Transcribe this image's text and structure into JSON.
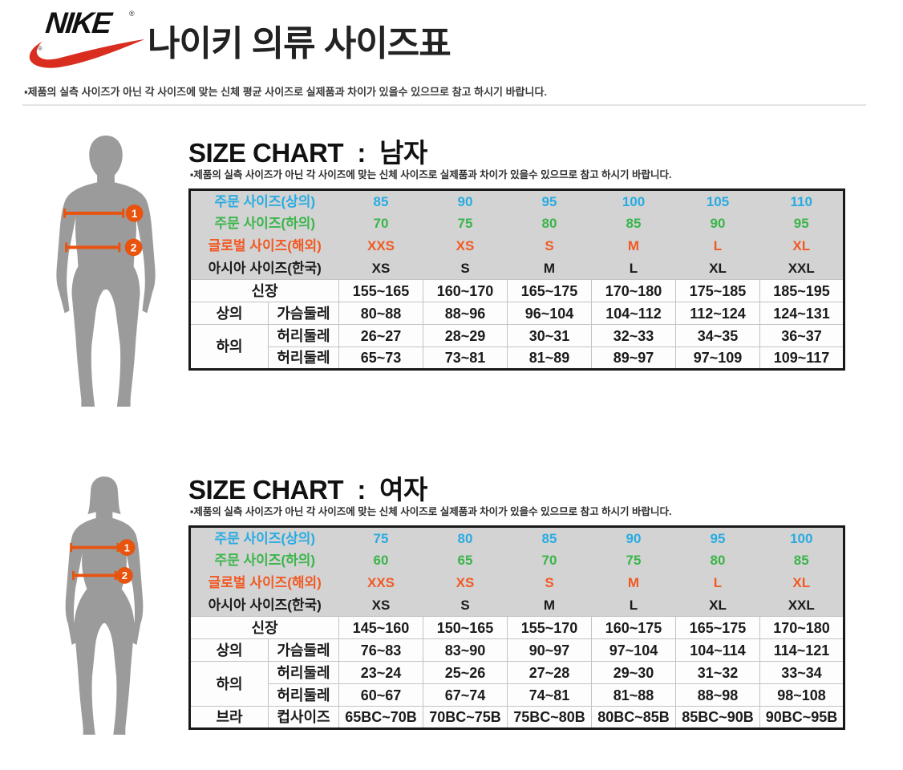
{
  "brand": {
    "wordmark": "NIKE",
    "registered_mark": "®"
  },
  "page_title": "나이키 의류 사이즈표",
  "top_note": "▪제품의 실측 사이즈가 아닌 각 사이즈에 맞는 신체 평균 사이즈로 실제품과 차이가 있을수 있으므로 참고 하시기 바랍니다.",
  "markers": {
    "chest": "1",
    "waist": "2"
  },
  "colors": {
    "blue": "#29ABE2",
    "green": "#3AB54A",
    "orange": "#F15A24",
    "black": "#1B1B1B",
    "marker_orange": "#E8530E",
    "swoosh_red": "#D92D20",
    "silhouette_gray": "#9B9B9B",
    "table_header_bg": "#D3D3D3"
  },
  "sections": {
    "men": {
      "title": "SIZE CHART  :  남자",
      "subtitle": "▪제품의 실측 사이즈가 아닌 각 사이즈에 맞는 신체 사이즈로 실제품과 차이가 있을수 있으므로 참고 하시기 바랍니다.",
      "size_rows": [
        {
          "label": "주문 사이즈(상의)",
          "color_key": "blue",
          "values": [
            "85",
            "90",
            "95",
            "100",
            "105",
            "110"
          ]
        },
        {
          "label": "주문 사이즈(하의)",
          "color_key": "green",
          "values": [
            "70",
            "75",
            "80",
            "85",
            "90",
            "95"
          ]
        },
        {
          "label": "글로벌 사이즈(해외)",
          "color_key": "orange",
          "values": [
            "XXS",
            "XS",
            "S",
            "M",
            "L",
            "XL"
          ]
        },
        {
          "label": "아시아 사이즈(한국)",
          "color_key": "black",
          "values": [
            "XS",
            "S",
            "M",
            "L",
            "XL",
            "XXL"
          ]
        }
      ],
      "body_rows": [
        {
          "label": "신장",
          "label_colspan": 2,
          "values": [
            "155~165",
            "160~170",
            "165~175",
            "170~180",
            "175~185",
            "185~195"
          ]
        },
        {
          "group": "상의",
          "group_rowspan": 1,
          "measure": "가슴둘레",
          "values": [
            "80~88",
            "88~96",
            "96~104",
            "104~112",
            "112~124",
            "124~131"
          ]
        },
        {
          "group": "하의",
          "group_rowspan": 2,
          "measure": "허리둘레",
          "values": [
            "26~27",
            "28~29",
            "30~31",
            "32~33",
            "34~35",
            "36~37"
          ]
        },
        {
          "measure": "허리둘레",
          "values": [
            "65~73",
            "73~81",
            "81~89",
            "89~97",
            "97~109",
            "109~117"
          ]
        }
      ]
    },
    "women": {
      "title": "SIZE CHART  :  여자",
      "subtitle": "▪제품의 실측 사이즈가 아닌 각 사이즈에 맞는 신체 사이즈로 실제품과 차이가 있을수 있으므로 참고 하시기 바랍니다.",
      "size_rows": [
        {
          "label": "주문 사이즈(상의)",
          "color_key": "blue",
          "values": [
            "75",
            "80",
            "85",
            "90",
            "95",
            "100"
          ]
        },
        {
          "label": "주문 사이즈(하의)",
          "color_key": "green",
          "values": [
            "60",
            "65",
            "70",
            "75",
            "80",
            "85"
          ]
        },
        {
          "label": "글로벌 사이즈(해외)",
          "color_key": "orange",
          "values": [
            "XXS",
            "XS",
            "S",
            "M",
            "L",
            "XL"
          ]
        },
        {
          "label": "아시아 사이즈(한국)",
          "color_key": "black",
          "values": [
            "XS",
            "S",
            "M",
            "L",
            "XL",
            "XXL"
          ]
        }
      ],
      "body_rows": [
        {
          "label": "신장",
          "label_colspan": 2,
          "values": [
            "145~160",
            "150~165",
            "155~170",
            "160~175",
            "165~175",
            "170~180"
          ]
        },
        {
          "group": "상의",
          "group_rowspan": 1,
          "measure": "가슴둘레",
          "values": [
            "76~83",
            "83~90",
            "90~97",
            "97~104",
            "104~114",
            "114~121"
          ]
        },
        {
          "group": "하의",
          "group_rowspan": 2,
          "measure": "허리둘레",
          "values": [
            "23~24",
            "25~26",
            "27~28",
            "29~30",
            "31~32",
            "33~34"
          ]
        },
        {
          "measure": "허리둘레",
          "values": [
            "60~67",
            "67~74",
            "74~81",
            "81~88",
            "88~98",
            "98~108"
          ]
        },
        {
          "group": "브라",
          "group_rowspan": 1,
          "measure": "컵사이즈",
          "values": [
            "65BC~70B",
            "70BC~75B",
            "75BC~80B",
            "80BC~85B",
            "85BC~90B",
            "90BC~95B"
          ]
        }
      ]
    }
  }
}
